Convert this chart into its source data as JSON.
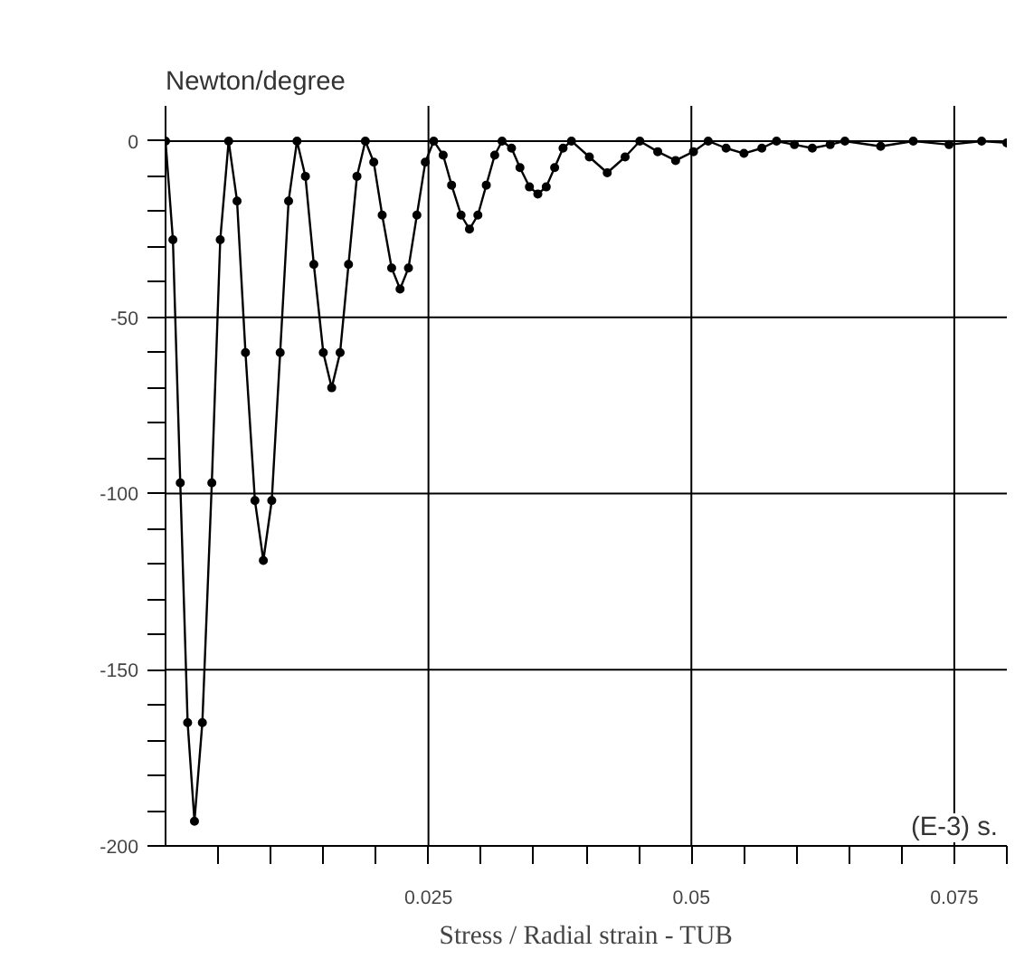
{
  "chart_data": {
    "type": "line",
    "title": "Stress / Radial strain - TUB",
    "ylabel": "Newton/degree",
    "xlabel": "(E-3) s.",
    "x": [
      0,
      0.0007,
      0.0014,
      0.0021,
      0.00275,
      0.0035,
      0.0044,
      0.0052,
      0.006,
      0.0068,
      0.0076,
      0.0085,
      0.0093,
      0.0101,
      0.0109,
      0.0117,
      0.0125,
      0.0133,
      0.0141,
      0.015,
      0.0158,
      0.0166,
      0.0174,
      0.0182,
      0.019,
      0.0198,
      0.0206,
      0.0215,
      0.0223,
      0.0231,
      0.0239,
      0.0247,
      0.0255,
      0.0264,
      0.0272,
      0.0281,
      0.0289,
      0.0297,
      0.0305,
      0.0313,
      0.032,
      0.0329,
      0.0337,
      0.0346,
      0.0354,
      0.0362,
      0.037,
      0.0378,
      0.0386,
      0.0403,
      0.042,
      0.0437,
      0.0451,
      0.0468,
      0.0485,
      0.0502,
      0.0516,
      0.0533,
      0.055,
      0.0567,
      0.0581,
      0.0598,
      0.0615,
      0.0632,
      0.0646,
      0.068,
      0.0711,
      0.0745,
      0.0776,
      0.08
    ],
    "series": [
      {
        "color": "#000000",
        "values": [
          0,
          -28,
          -97,
          -165,
          -193,
          -165,
          -97,
          -28,
          0,
          -17,
          -60,
          -102,
          -119,
          -102,
          -60,
          -17,
          0,
          -10,
          -35,
          -60,
          -70,
          -60,
          -35,
          -10,
          0,
          -6,
          -21,
          -36,
          -42,
          -36,
          -21,
          -6,
          0,
          -4,
          -12.5,
          -21,
          -25,
          -21,
          -12.5,
          -4,
          0,
          -2,
          -7.5,
          -13,
          -15,
          -13,
          -7.5,
          -2,
          0,
          -4.5,
          -9,
          -4.5,
          0,
          -3,
          -5.5,
          -3,
          0,
          -2,
          -3.5,
          -2,
          0,
          -1,
          -2,
          -1,
          0,
          -1.5,
          0,
          -1,
          0,
          -0.5
        ]
      }
    ],
    "xlim": [
      0,
      0.08
    ],
    "ylim": [
      -200,
      10
    ],
    "xticks": [
      {
        "value": 0.005,
        "label": null
      },
      {
        "value": 0.01,
        "label": null
      },
      {
        "value": 0.015,
        "label": null
      },
      {
        "value": 0.02,
        "label": null
      },
      0.025,
      {
        "value": 0.03,
        "label": null
      },
      {
        "value": 0.035,
        "label": null
      },
      {
        "value": 0.04,
        "label": null
      },
      {
        "value": 0.045,
        "label": null
      },
      0.05,
      {
        "value": 0.055,
        "label": null
      },
      {
        "value": 0.06,
        "label": null
      },
      {
        "value": 0.065,
        "label": null
      },
      {
        "value": 0.07,
        "label": null
      },
      0.075,
      {
        "value": 0.08,
        "label": null
      }
    ],
    "yticks": [
      -200,
      {
        "value": -190,
        "label": null
      },
      {
        "value": -180,
        "label": null
      },
      {
        "value": -170,
        "label": null
      },
      {
        "value": -160,
        "label": null
      },
      -150,
      {
        "value": -140,
        "label": null
      },
      {
        "value": -130,
        "label": null
      },
      {
        "value": -120,
        "label": null
      },
      {
        "value": -110,
        "label": null
      },
      -100,
      {
        "value": -90,
        "label": null
      },
      {
        "value": -80,
        "label": null
      },
      {
        "value": -70,
        "label": null
      },
      {
        "value": -60,
        "label": null
      },
      -50,
      {
        "value": -40,
        "label": null
      },
      {
        "value": -30,
        "label": null
      },
      {
        "value": -20,
        "label": null
      },
      {
        "value": -10,
        "label": null
      },
      0
    ],
    "grid": true,
    "marker": "circle",
    "line_style": "solid"
  }
}
